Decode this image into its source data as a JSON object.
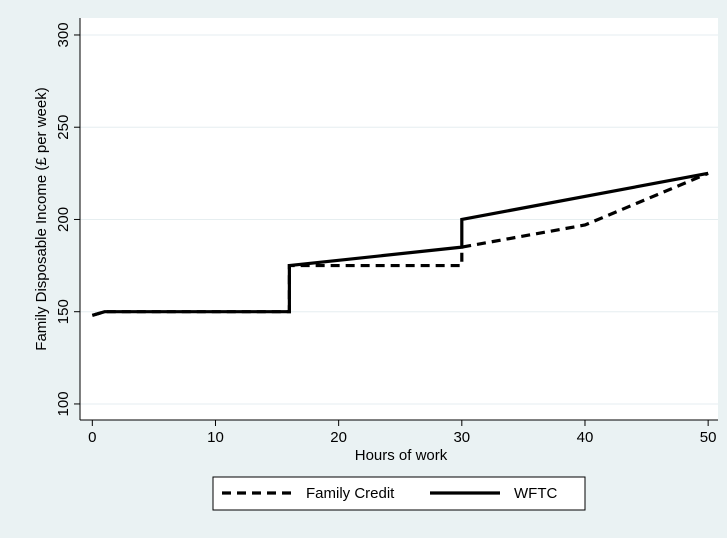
{
  "chart_data": {
    "type": "line",
    "x_label": "Hours of work",
    "y_label": "Family Disposable Income (£ per week)",
    "series": [
      {
        "name": "Family Credit",
        "color": "#000000",
        "dash": true,
        "x": [
          0,
          1,
          16,
          16,
          30,
          30,
          40,
          50
        ],
        "values": [
          148,
          150,
          150,
          175,
          175,
          185,
          197,
          225
        ]
      },
      {
        "name": "WFTC",
        "color": "#000000",
        "dash": false,
        "x": [
          0,
          1,
          16,
          16,
          30,
          30,
          50
        ],
        "values": [
          148,
          150,
          150,
          175,
          185,
          200,
          225
        ]
      }
    ],
    "xlim": [
      -1,
      50.8
    ],
    "xticks": [
      0,
      10,
      20,
      30,
      40,
      50
    ],
    "ylim": [
      91.3,
      309.2
    ],
    "yticks": [
      100,
      150,
      200,
      250,
      300
    ],
    "grid": true,
    "legend_position": "bottom"
  }
}
